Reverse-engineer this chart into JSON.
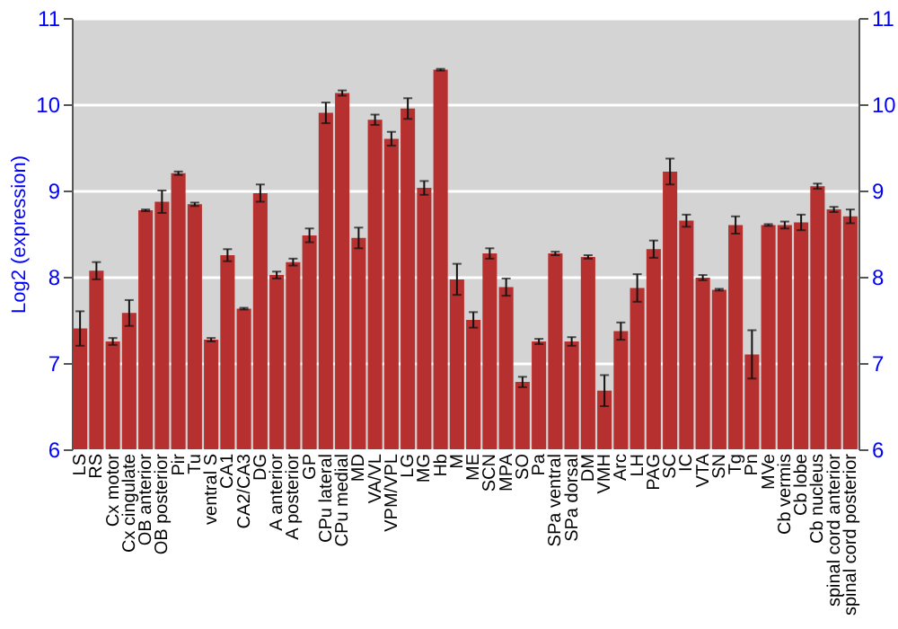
{
  "chart_data": {
    "type": "bar",
    "ylabel": "Log2 (expression)",
    "categories": [
      "LS",
      "RS",
      "Cx motor",
      "Cx cingulate",
      "OB anterior",
      "OB posterior",
      "Pir",
      "Tu",
      "ventral S",
      "CA1",
      "CA2/CA3",
      "DG",
      "A anterior",
      "A posterior",
      "GP",
      "CPu lateral",
      "CPu medial",
      "MD",
      "VA/VL",
      "VPM/VPL",
      "LG",
      "MG",
      "Hb",
      "M",
      "ME",
      "SCN",
      "MPA",
      "SO",
      "Pa",
      "SPa ventral",
      "SPa dorsal",
      "DM",
      "VMH",
      "Arc",
      "LH",
      "PAG",
      "SC",
      "IC",
      "VTA",
      "SN",
      "Tg",
      "Pn",
      "MVe",
      "Cb vermis",
      "Cb lobe",
      "Cb nucleus",
      "spinal cord anterior",
      "spinal cord posterior"
    ],
    "values": [
      7.4,
      8.07,
      7.25,
      7.58,
      8.77,
      8.87,
      9.2,
      8.84,
      7.27,
      8.25,
      7.63,
      8.97,
      8.02,
      8.17,
      8.48,
      9.9,
      10.13,
      8.45,
      9.82,
      9.6,
      9.95,
      9.03,
      10.4,
      7.97,
      7.5,
      8.27,
      7.88,
      6.78,
      7.25,
      8.27,
      7.25,
      8.23,
      6.68,
      7.37,
      7.87,
      8.32,
      9.22,
      8.65,
      7.99,
      7.85,
      8.6,
      7.1,
      8.6,
      8.6,
      8.63,
      9.05,
      8.78,
      8.7
    ],
    "errors": [
      0.2,
      0.1,
      0.04,
      0.15,
      0.01,
      0.13,
      0.02,
      0.02,
      0.02,
      0.07,
      0.01,
      0.1,
      0.04,
      0.04,
      0.08,
      0.12,
      0.03,
      0.12,
      0.06,
      0.08,
      0.12,
      0.08,
      0.01,
      0.18,
      0.09,
      0.06,
      0.1,
      0.06,
      0.03,
      0.02,
      0.05,
      0.02,
      0.18,
      0.1,
      0.16,
      0.1,
      0.15,
      0.07,
      0.03,
      0.01,
      0.1,
      0.28,
      0.01,
      0.04,
      0.09,
      0.03,
      0.03,
      0.08
    ],
    "color": "#b5302f",
    "ylim": [
      6,
      11
    ],
    "yticks": [
      6,
      7,
      8,
      9,
      10,
      11
    ],
    "y2lim": [
      6,
      11
    ],
    "y2ticks": [
      6,
      7,
      8,
      9,
      10,
      11
    ],
    "grid": "y"
  }
}
